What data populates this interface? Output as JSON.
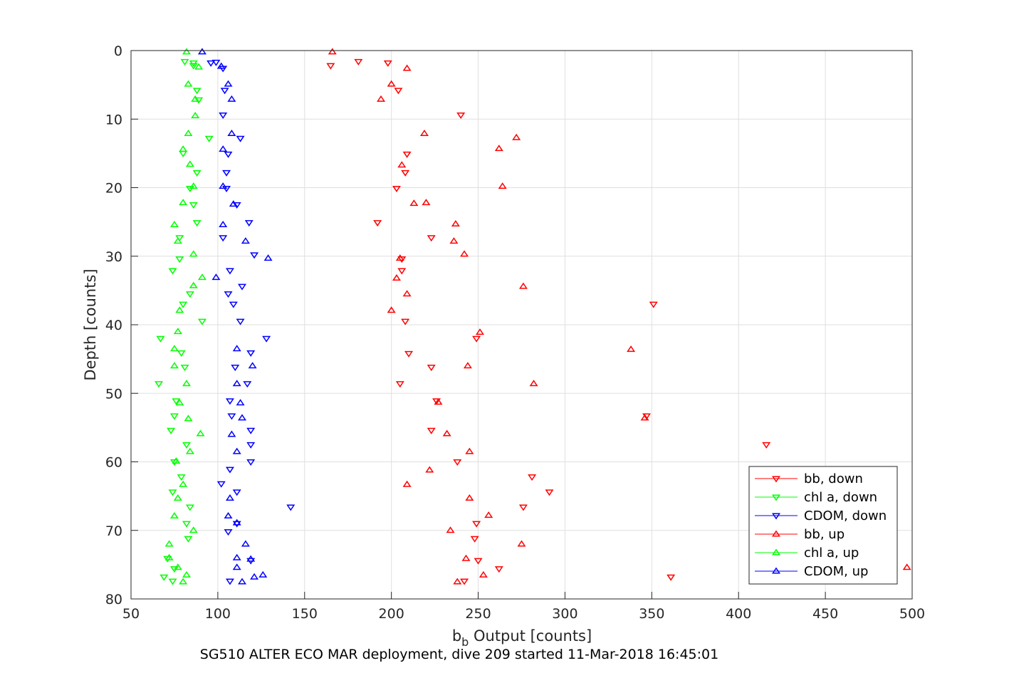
{
  "caption": "SG510 ALTER ECO MAR deployment, dive 209 started 11-Mar-2018 16:45:01",
  "chart_data": {
    "type": "scatter",
    "title": "",
    "xlabel_main": "b",
    "xlabel_sub": "b",
    "xlabel_rest": " Output [counts]",
    "ylabel": "Depth [counts]",
    "xlim": [
      50,
      500
    ],
    "ylim": [
      0,
      80
    ],
    "y_reversed": true,
    "grid": true,
    "xticks": [
      "50",
      "100",
      "150",
      "200",
      "250",
      "300",
      "350",
      "400",
      "450",
      "500"
    ],
    "yticks": [
      "0",
      "10",
      "20",
      "30",
      "40",
      "50",
      "60",
      "70",
      "80"
    ],
    "legend_position": "bottom-right",
    "series": [
      {
        "name": "bb, down",
        "color": "#ff0000",
        "marker": "triangle-down",
        "points": [
          [
            181,
            1.6
          ],
          [
            165,
            2.2
          ],
          [
            198,
            1.8
          ],
          [
            204,
            5.8
          ],
          [
            240,
            9.4
          ],
          [
            209,
            15.1
          ],
          [
            208,
            17.8
          ],
          [
            203,
            20.1
          ],
          [
            192,
            25.1
          ],
          [
            223,
            27.3
          ],
          [
            206,
            30.4
          ],
          [
            206,
            32.1
          ],
          [
            351,
            37
          ],
          [
            208,
            39.5
          ],
          [
            249,
            42
          ],
          [
            210,
            44.2
          ],
          [
            223,
            46.2
          ],
          [
            205,
            48.6
          ],
          [
            226,
            51.1
          ],
          [
            347,
            53.3
          ],
          [
            223,
            55.4
          ],
          [
            416,
            57.5
          ],
          [
            238,
            60
          ],
          [
            281,
            62.2
          ],
          [
            291,
            64.4
          ],
          [
            276,
            66.6
          ],
          [
            249,
            69
          ],
          [
            248,
            71.2
          ],
          [
            250,
            74.4
          ],
          [
            262,
            75.6
          ],
          [
            361,
            76.8
          ],
          [
            242,
            77.4
          ]
        ]
      },
      {
        "name": "chl a, down",
        "color": "#00ff00",
        "marker": "triangle-down",
        "points": [
          [
            81,
            1.6
          ],
          [
            86,
            1.8
          ],
          [
            86,
            2.2
          ],
          [
            88,
            5.8
          ],
          [
            89,
            7.2
          ],
          [
            95,
            12.8
          ],
          [
            80,
            15
          ],
          [
            88,
            17.8
          ],
          [
            84,
            20.1
          ],
          [
            86,
            22.5
          ],
          [
            88,
            25.1
          ],
          [
            78,
            27.3
          ],
          [
            78,
            30.4
          ],
          [
            74,
            32.1
          ],
          [
            84,
            35.5
          ],
          [
            80,
            37
          ],
          [
            91,
            39.5
          ],
          [
            67,
            42
          ],
          [
            79,
            44.1
          ],
          [
            81,
            46.2
          ],
          [
            66,
            48.6
          ],
          [
            76,
            51.1
          ],
          [
            75,
            53.3
          ],
          [
            73,
            55.4
          ],
          [
            82,
            57.5
          ],
          [
            75,
            60
          ],
          [
            79,
            62.2
          ],
          [
            74,
            64.4
          ],
          [
            84,
            66.6
          ],
          [
            82,
            69
          ],
          [
            83,
            71.2
          ],
          [
            71,
            74.1
          ],
          [
            75,
            75.6
          ],
          [
            69,
            76.8
          ],
          [
            74,
            77.4
          ]
        ]
      },
      {
        "name": "CDOM, down",
        "color": "#0000ff",
        "marker": "triangle-down",
        "points": [
          [
            96,
            1.8
          ],
          [
            99,
            1.7
          ],
          [
            103,
            2.6
          ],
          [
            104,
            5.8
          ],
          [
            103,
            9.4
          ],
          [
            113,
            12.8
          ],
          [
            106,
            15.1
          ],
          [
            105,
            17.8
          ],
          [
            105,
            20.1
          ],
          [
            111,
            22.5
          ],
          [
            118,
            25.1
          ],
          [
            103,
            27.3
          ],
          [
            121,
            29.8
          ],
          [
            107,
            32.1
          ],
          [
            114,
            34.4
          ],
          [
            106,
            35.5
          ],
          [
            109,
            37
          ],
          [
            113,
            39.5
          ],
          [
            128,
            42
          ],
          [
            119,
            44.1
          ],
          [
            110,
            46.2
          ],
          [
            117,
            48.6
          ],
          [
            107,
            51.1
          ],
          [
            108,
            53.3
          ],
          [
            119,
            55.4
          ],
          [
            119,
            57.5
          ],
          [
            119,
            60
          ],
          [
            107,
            61.1
          ],
          [
            102,
            63.2
          ],
          [
            111,
            64.4
          ],
          [
            142,
            66.6
          ],
          [
            111,
            69
          ],
          [
            106,
            70.2
          ],
          [
            119,
            74.4
          ],
          [
            107,
            77.4
          ]
        ]
      },
      {
        "name": "bb, up",
        "color": "#ff0000",
        "marker": "triangle-up",
        "points": [
          [
            166,
            0.2
          ],
          [
            209,
            2.6
          ],
          [
            200,
            4.9
          ],
          [
            194,
            7.1
          ],
          [
            219,
            12.1
          ],
          [
            272,
            12.7
          ],
          [
            262,
            14.3
          ],
          [
            206,
            16.7
          ],
          [
            264,
            19.8
          ],
          [
            213,
            22.3
          ],
          [
            220,
            22.2
          ],
          [
            237,
            25.3
          ],
          [
            236,
            27.8
          ],
          [
            242,
            29.7
          ],
          [
            205,
            30.3
          ],
          [
            203,
            33.2
          ],
          [
            276,
            34.4
          ],
          [
            209,
            35.5
          ],
          [
            200,
            37.9
          ],
          [
            251,
            41.1
          ],
          [
            338,
            43.6
          ],
          [
            244,
            46
          ],
          [
            282,
            48.6
          ],
          [
            227,
            51.3
          ],
          [
            346,
            53.6
          ],
          [
            232,
            55.9
          ],
          [
            245,
            58.5
          ],
          [
            222,
            61.2
          ],
          [
            209,
            63.3
          ],
          [
            245,
            65.3
          ],
          [
            256,
            67.8
          ],
          [
            234,
            70
          ],
          [
            275,
            72
          ],
          [
            243,
            74.1
          ],
          [
            497,
            75.4
          ],
          [
            253,
            76.5
          ],
          [
            238,
            77.5
          ]
        ]
      },
      {
        "name": "chl a, up",
        "color": "#00ff00",
        "marker": "triangle-up",
        "points": [
          [
            82,
            0.2
          ],
          [
            89,
            2.4
          ],
          [
            83,
            4.9
          ],
          [
            87,
            7.1
          ],
          [
            87,
            9.5
          ],
          [
            83,
            12.1
          ],
          [
            80,
            14.4
          ],
          [
            84,
            16.6
          ],
          [
            86,
            19.8
          ],
          [
            80,
            22.2
          ],
          [
            75,
            25.4
          ],
          [
            77,
            27.8
          ],
          [
            86,
            29.7
          ],
          [
            91,
            33.1
          ],
          [
            86,
            34.3
          ],
          [
            78,
            37.9
          ],
          [
            77,
            41
          ],
          [
            75,
            43.5
          ],
          [
            75,
            46
          ],
          [
            82,
            48.6
          ],
          [
            78,
            51.4
          ],
          [
            83,
            53.7
          ],
          [
            90,
            55.9
          ],
          [
            84,
            58.5
          ],
          [
            76,
            59.9
          ],
          [
            80,
            63.3
          ],
          [
            77,
            65.3
          ],
          [
            75,
            67.9
          ],
          [
            86,
            70
          ],
          [
            72,
            72
          ],
          [
            72,
            74
          ],
          [
            77,
            75.4
          ],
          [
            82,
            76.5
          ],
          [
            80,
            77.5
          ]
        ]
      },
      {
        "name": "CDOM, up",
        "color": "#0000ff",
        "marker": "triangle-up",
        "points": [
          [
            91,
            0.2
          ],
          [
            102,
            2.3
          ],
          [
            106,
            4.9
          ],
          [
            108,
            7.1
          ],
          [
            108,
            12.1
          ],
          [
            103,
            14.4
          ],
          [
            103,
            19.8
          ],
          [
            109,
            22.4
          ],
          [
            103,
            25.4
          ],
          [
            116,
            27.8
          ],
          [
            129,
            30.3
          ],
          [
            99,
            33.1
          ],
          [
            111,
            43.5
          ],
          [
            120,
            46
          ],
          [
            111,
            48.6
          ],
          [
            113,
            51.4
          ],
          [
            114,
            53.6
          ],
          [
            108,
            56
          ],
          [
            111,
            58.5
          ],
          [
            107,
            65.3
          ],
          [
            106,
            67.9
          ],
          [
            111,
            68.9
          ],
          [
            116,
            72
          ],
          [
            111,
            74
          ],
          [
            119,
            74.2
          ],
          [
            111,
            75.4
          ],
          [
            126,
            76.5
          ],
          [
            121,
            76.8
          ],
          [
            114,
            77.5
          ]
        ]
      }
    ]
  }
}
